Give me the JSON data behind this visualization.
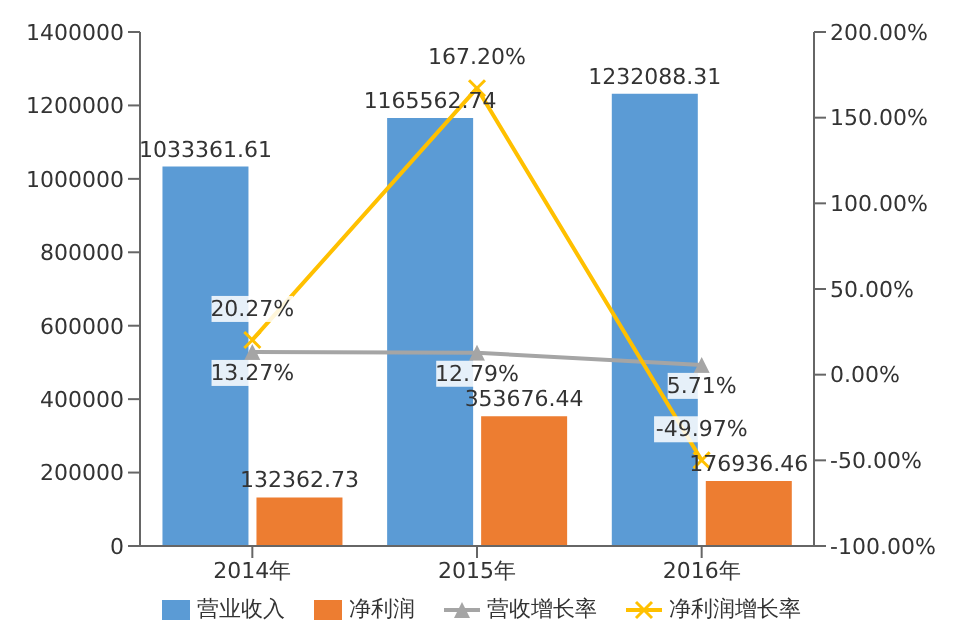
{
  "chart_data": {
    "type": "bar",
    "categories": [
      "2014年",
      "2015年",
      "2016年"
    ],
    "series": [
      {
        "name": "营业收入",
        "color": "#5b9bd5",
        "values": [
          1033361.61,
          1165562.74,
          1232088.31
        ]
      },
      {
        "name": "净利润",
        "color": "#ed7d31",
        "values": [
          132362.73,
          353676.44,
          176936.46
        ]
      },
      {
        "name": "营收增长率",
        "type": "line",
        "axis": "y2",
        "color": "#a5a5a5",
        "marker": "triangle",
        "values": [
          13.27,
          12.79,
          5.71
        ],
        "value_labels": [
          "13.27%",
          "12.79%",
          "5.71%"
        ]
      },
      {
        "name": "净利润增长率",
        "type": "line",
        "axis": "y2",
        "color": "#ffc000",
        "marker": "cross",
        "values": [
          20.27,
          167.2,
          -49.97
        ],
        "value_labels": [
          "20.27%",
          "167.20%",
          "-49.97%"
        ]
      }
    ],
    "ylim": [
      0,
      1400000
    ],
    "yticks": [
      0,
      200000,
      400000,
      600000,
      800000,
      1000000,
      1200000,
      1400000
    ],
    "y2lim": [
      -100,
      200
    ],
    "y2ticks": [
      {
        "value": -100,
        "label": "-100.00%"
      },
      {
        "value": -50,
        "label": "-50.00%"
      },
      {
        "value": 0,
        "label": "0.00%"
      },
      {
        "value": 50,
        "label": "50.00%"
      },
      {
        "value": 100,
        "label": "100.00%"
      },
      {
        "value": 150,
        "label": "150.00%"
      },
      {
        "value": 200,
        "label": "200.00%"
      }
    ],
    "data_labels": true,
    "legend": "bottom"
  }
}
